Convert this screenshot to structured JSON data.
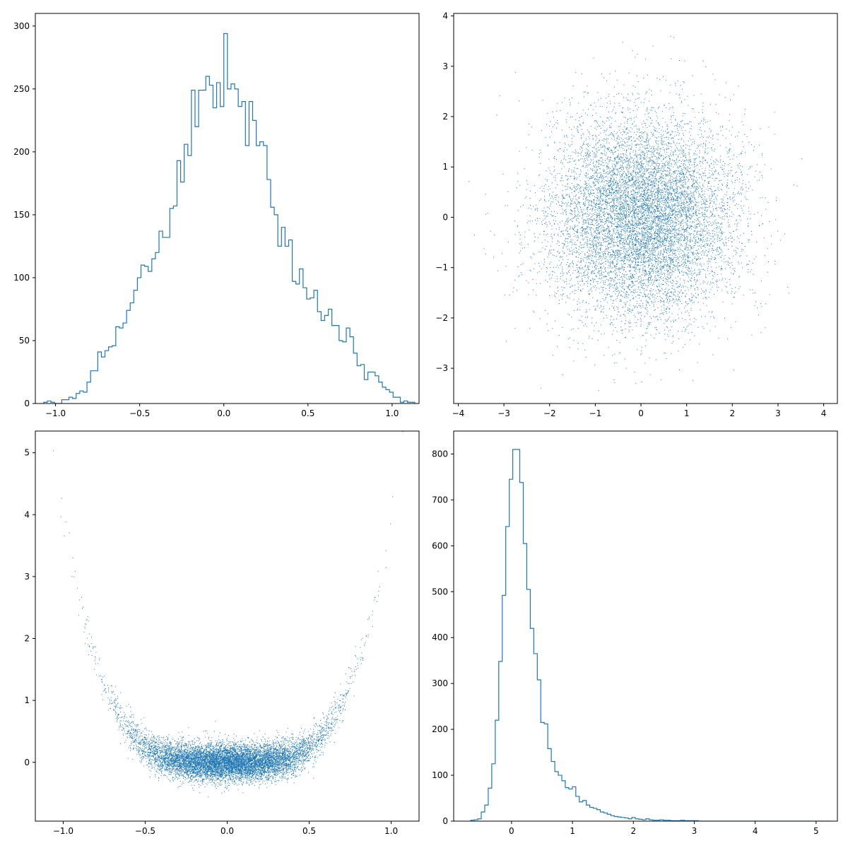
{
  "chart_data": [
    {
      "type": "histogram",
      "position": "top-left",
      "style": "step",
      "color": "#1f77b4",
      "xlim": [
        -1.12,
        1.16
      ],
      "ylim": [
        0,
        310
      ],
      "xticks": [
        -1.0,
        -0.5,
        0.0,
        0.5,
        1.0
      ],
      "xtick_labels": [
        "−1.0",
        "−0.5",
        "0.0",
        "0.5",
        "1.0"
      ],
      "yticks": [
        0,
        50,
        100,
        150,
        200,
        250,
        300
      ],
      "ytick_labels": [
        "0",
        "50",
        "100",
        "150",
        "200",
        "250",
        "300"
      ],
      "bin_start": -1.07,
      "bin_width": 0.0214,
      "counts": [
        1,
        2,
        1,
        0,
        0,
        3,
        3,
        5,
        4,
        8,
        10,
        9,
        17,
        26,
        26,
        41,
        37,
        42,
        45,
        46,
        61,
        60,
        64,
        74,
        80,
        90,
        100,
        110,
        109,
        105,
        115,
        120,
        137,
        132,
        132,
        155,
        157,
        193,
        176,
        206,
        197,
        249,
        220,
        249,
        249,
        260,
        253,
        235,
        255,
        236,
        294,
        250,
        254,
        250,
        236,
        240,
        205,
        240,
        225,
        205,
        208,
        205,
        178,
        156,
        150,
        125,
        140,
        125,
        130,
        97,
        95,
        107,
        92,
        83,
        84,
        90,
        73,
        66,
        70,
        75,
        62,
        62,
        50,
        49,
        60,
        53,
        40,
        30,
        31,
        19,
        25,
        25,
        22,
        17,
        13,
        11,
        9,
        5,
        5,
        1,
        2,
        1,
        1
      ]
    },
    {
      "type": "scatter",
      "position": "top-right",
      "marker": "pixel",
      "color": "#1f77b4",
      "distribution": "2D standard normal, about 10000 points",
      "n_points": 10000,
      "x_mean": 0,
      "x_std": 1,
      "y_mean": 0,
      "y_std": 1,
      "xlim": [
        -4.1,
        4.3
      ],
      "ylim": [
        -3.7,
        4.05
      ],
      "xticks": [
        -4,
        -3,
        -2,
        -1,
        0,
        1,
        2,
        3,
        4
      ],
      "xtick_labels": [
        "−4",
        "−3",
        "−2",
        "−1",
        "0",
        "1",
        "2",
        "3",
        "4"
      ],
      "yticks": [
        -3,
        -2,
        -1,
        0,
        1,
        2,
        3,
        4
      ],
      "ytick_labels": [
        "−3",
        "−2",
        "−1",
        "0",
        "1",
        "2",
        "3",
        "4"
      ]
    },
    {
      "type": "scatter",
      "position": "bottom-left",
      "marker": "pixel",
      "color": "#1f77b4",
      "distribution": "x uniform-like on [-1.1, 1.1], y = 4·x^4 + noise(std 0.15)",
      "n_points": 10000,
      "xlim": [
        -1.17,
        1.17
      ],
      "ylim": [
        -0.95,
        5.35
      ],
      "xticks": [
        -1.0,
        -0.5,
        0.0,
        0.5,
        1.0
      ],
      "xtick_labels": [
        "−1.0",
        "−0.5",
        "0.0",
        "0.5",
        "1.0"
      ],
      "yticks": [
        0,
        1,
        2,
        3,
        4,
        5
      ],
      "ytick_labels": [
        "0",
        "1",
        "2",
        "3",
        "4",
        "5"
      ]
    },
    {
      "type": "histogram",
      "position": "bottom-right",
      "style": "step",
      "color": "#1f77b4",
      "xlim": [
        -0.95,
        5.35
      ],
      "ylim": [
        0,
        850
      ],
      "xticks": [
        0,
        1,
        2,
        3,
        4,
        5
      ],
      "xtick_labels": [
        "0",
        "1",
        "2",
        "3",
        "4",
        "5"
      ],
      "yticks": [
        0,
        100,
        200,
        300,
        400,
        500,
        600,
        700,
        800
      ],
      "ytick_labels": [
        "0",
        "100",
        "200",
        "300",
        "400",
        "500",
        "600",
        "700",
        "800"
      ],
      "bin_start": -0.67,
      "bin_width": 0.0575,
      "counts": [
        2,
        3,
        5,
        20,
        35,
        72,
        125,
        220,
        348,
        492,
        642,
        745,
        810,
        810,
        738,
        605,
        505,
        420,
        365,
        308,
        215,
        212,
        158,
        130,
        108,
        100,
        88,
        73,
        70,
        75,
        54,
        42,
        45,
        35,
        30,
        28,
        25,
        20,
        18,
        15,
        12,
        10,
        9,
        8,
        7,
        5,
        8,
        5,
        4,
        3,
        5,
        3,
        2,
        2,
        3,
        2,
        2,
        1,
        1,
        1,
        2,
        1,
        1,
        1,
        1,
        0,
        0,
        0,
        0,
        0,
        0,
        0,
        0,
        0,
        0,
        0,
        0,
        0,
        0,
        0,
        0,
        0,
        0,
        0,
        0,
        0,
        0,
        0,
        0,
        0,
        0,
        0,
        0,
        0,
        0,
        0,
        0,
        0,
        0,
        0,
        0,
        0,
        0
      ]
    }
  ]
}
